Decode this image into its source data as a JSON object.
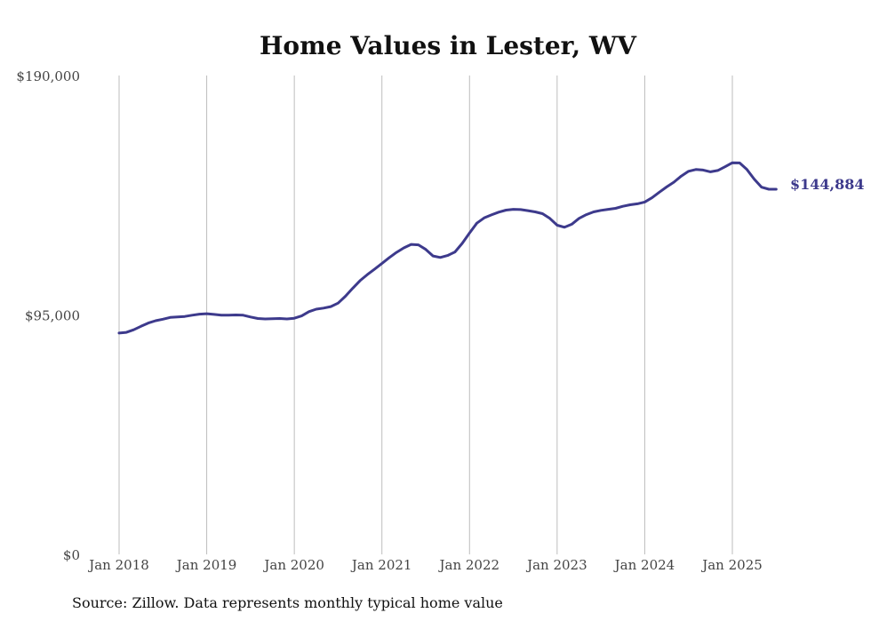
{
  "chart_data": {
    "type": "line",
    "title": "Home Values in Lester, WV",
    "source": "Source: Zillow. Data represents monthly typical home value",
    "xlabel": "",
    "ylabel": "",
    "ylim": [
      0,
      190000
    ],
    "y_ticks": [
      "$190,000",
      "$95,000",
      "$0"
    ],
    "y_tick_values": [
      190000,
      95000,
      0
    ],
    "x_ticks": [
      "Jan 2018",
      "Jan 2019",
      "Jan 2020",
      "Jan 2021",
      "Jan 2022",
      "Jan 2023",
      "Jan 2024",
      "Jan 2025"
    ],
    "x_tick_values": [
      "2018-01",
      "2019-01",
      "2020-01",
      "2021-01",
      "2022-01",
      "2023-01",
      "2024-01",
      "2025-01"
    ],
    "xlim": [
      "2018-01",
      "2025-07"
    ],
    "grid": "vertical",
    "end_label": "$144,884",
    "color": "#3d3a8c",
    "series": [
      {
        "x": [
          "2018-01",
          "2018-02",
          "2018-03",
          "2018-04",
          "2018-05",
          "2018-06",
          "2018-07",
          "2018-08",
          "2018-09",
          "2018-10",
          "2018-11",
          "2018-12",
          "2019-01",
          "2019-02",
          "2019-03",
          "2019-04",
          "2019-05",
          "2019-06",
          "2019-07",
          "2019-08",
          "2019-09",
          "2019-10",
          "2019-11",
          "2019-12",
          "2020-01",
          "2020-02",
          "2020-03",
          "2020-04",
          "2020-05",
          "2020-06",
          "2020-07",
          "2020-08",
          "2020-09",
          "2020-10",
          "2020-11",
          "2020-12",
          "2021-01",
          "2021-02",
          "2021-03",
          "2021-04",
          "2021-05",
          "2021-06",
          "2021-07",
          "2021-08",
          "2021-09",
          "2021-10",
          "2021-11",
          "2021-12",
          "2022-01",
          "2022-02",
          "2022-03",
          "2022-04",
          "2022-05",
          "2022-06",
          "2022-07",
          "2022-08",
          "2022-09",
          "2022-10",
          "2022-11",
          "2022-12",
          "2023-01",
          "2023-02",
          "2023-03",
          "2023-04",
          "2023-05",
          "2023-06",
          "2023-07",
          "2023-08",
          "2023-09",
          "2023-10",
          "2023-11",
          "2023-12",
          "2024-01",
          "2024-02",
          "2024-03",
          "2024-04",
          "2024-05",
          "2024-06",
          "2024-07",
          "2024-08",
          "2024-09",
          "2024-10",
          "2024-11",
          "2024-12",
          "2025-01",
          "2025-02",
          "2025-03",
          "2025-04",
          "2025-05",
          "2025-06",
          "2025-07"
        ],
        "values": [
          87800,
          88100,
          89100,
          90500,
          91800,
          92700,
          93300,
          94000,
          94200,
          94400,
          94900,
          95300,
          95500,
          95200,
          94900,
          94900,
          95000,
          94900,
          94200,
          93600,
          93400,
          93500,
          93600,
          93400,
          93700,
          94600,
          96300,
          97300,
          97700,
          98300,
          99700,
          102400,
          105600,
          108600,
          111000,
          113200,
          115400,
          117700,
          119800,
          121600,
          123000,
          122800,
          121000,
          118400,
          117800,
          118600,
          120000,
          123400,
          127500,
          131400,
          133500,
          134700,
          135800,
          136600,
          136900,
          136800,
          136400,
          135900,
          135200,
          133300,
          130600,
          129800,
          131000,
          133300,
          134800,
          135900,
          136500,
          136900,
          137300,
          138100,
          138700,
          139100,
          139800,
          141500,
          143700,
          145800,
          147700,
          150100,
          152000,
          152700,
          152500,
          151800,
          152300,
          153800,
          155400,
          155300,
          152700,
          148900,
          145700,
          144884,
          144884
        ]
      }
    ]
  }
}
